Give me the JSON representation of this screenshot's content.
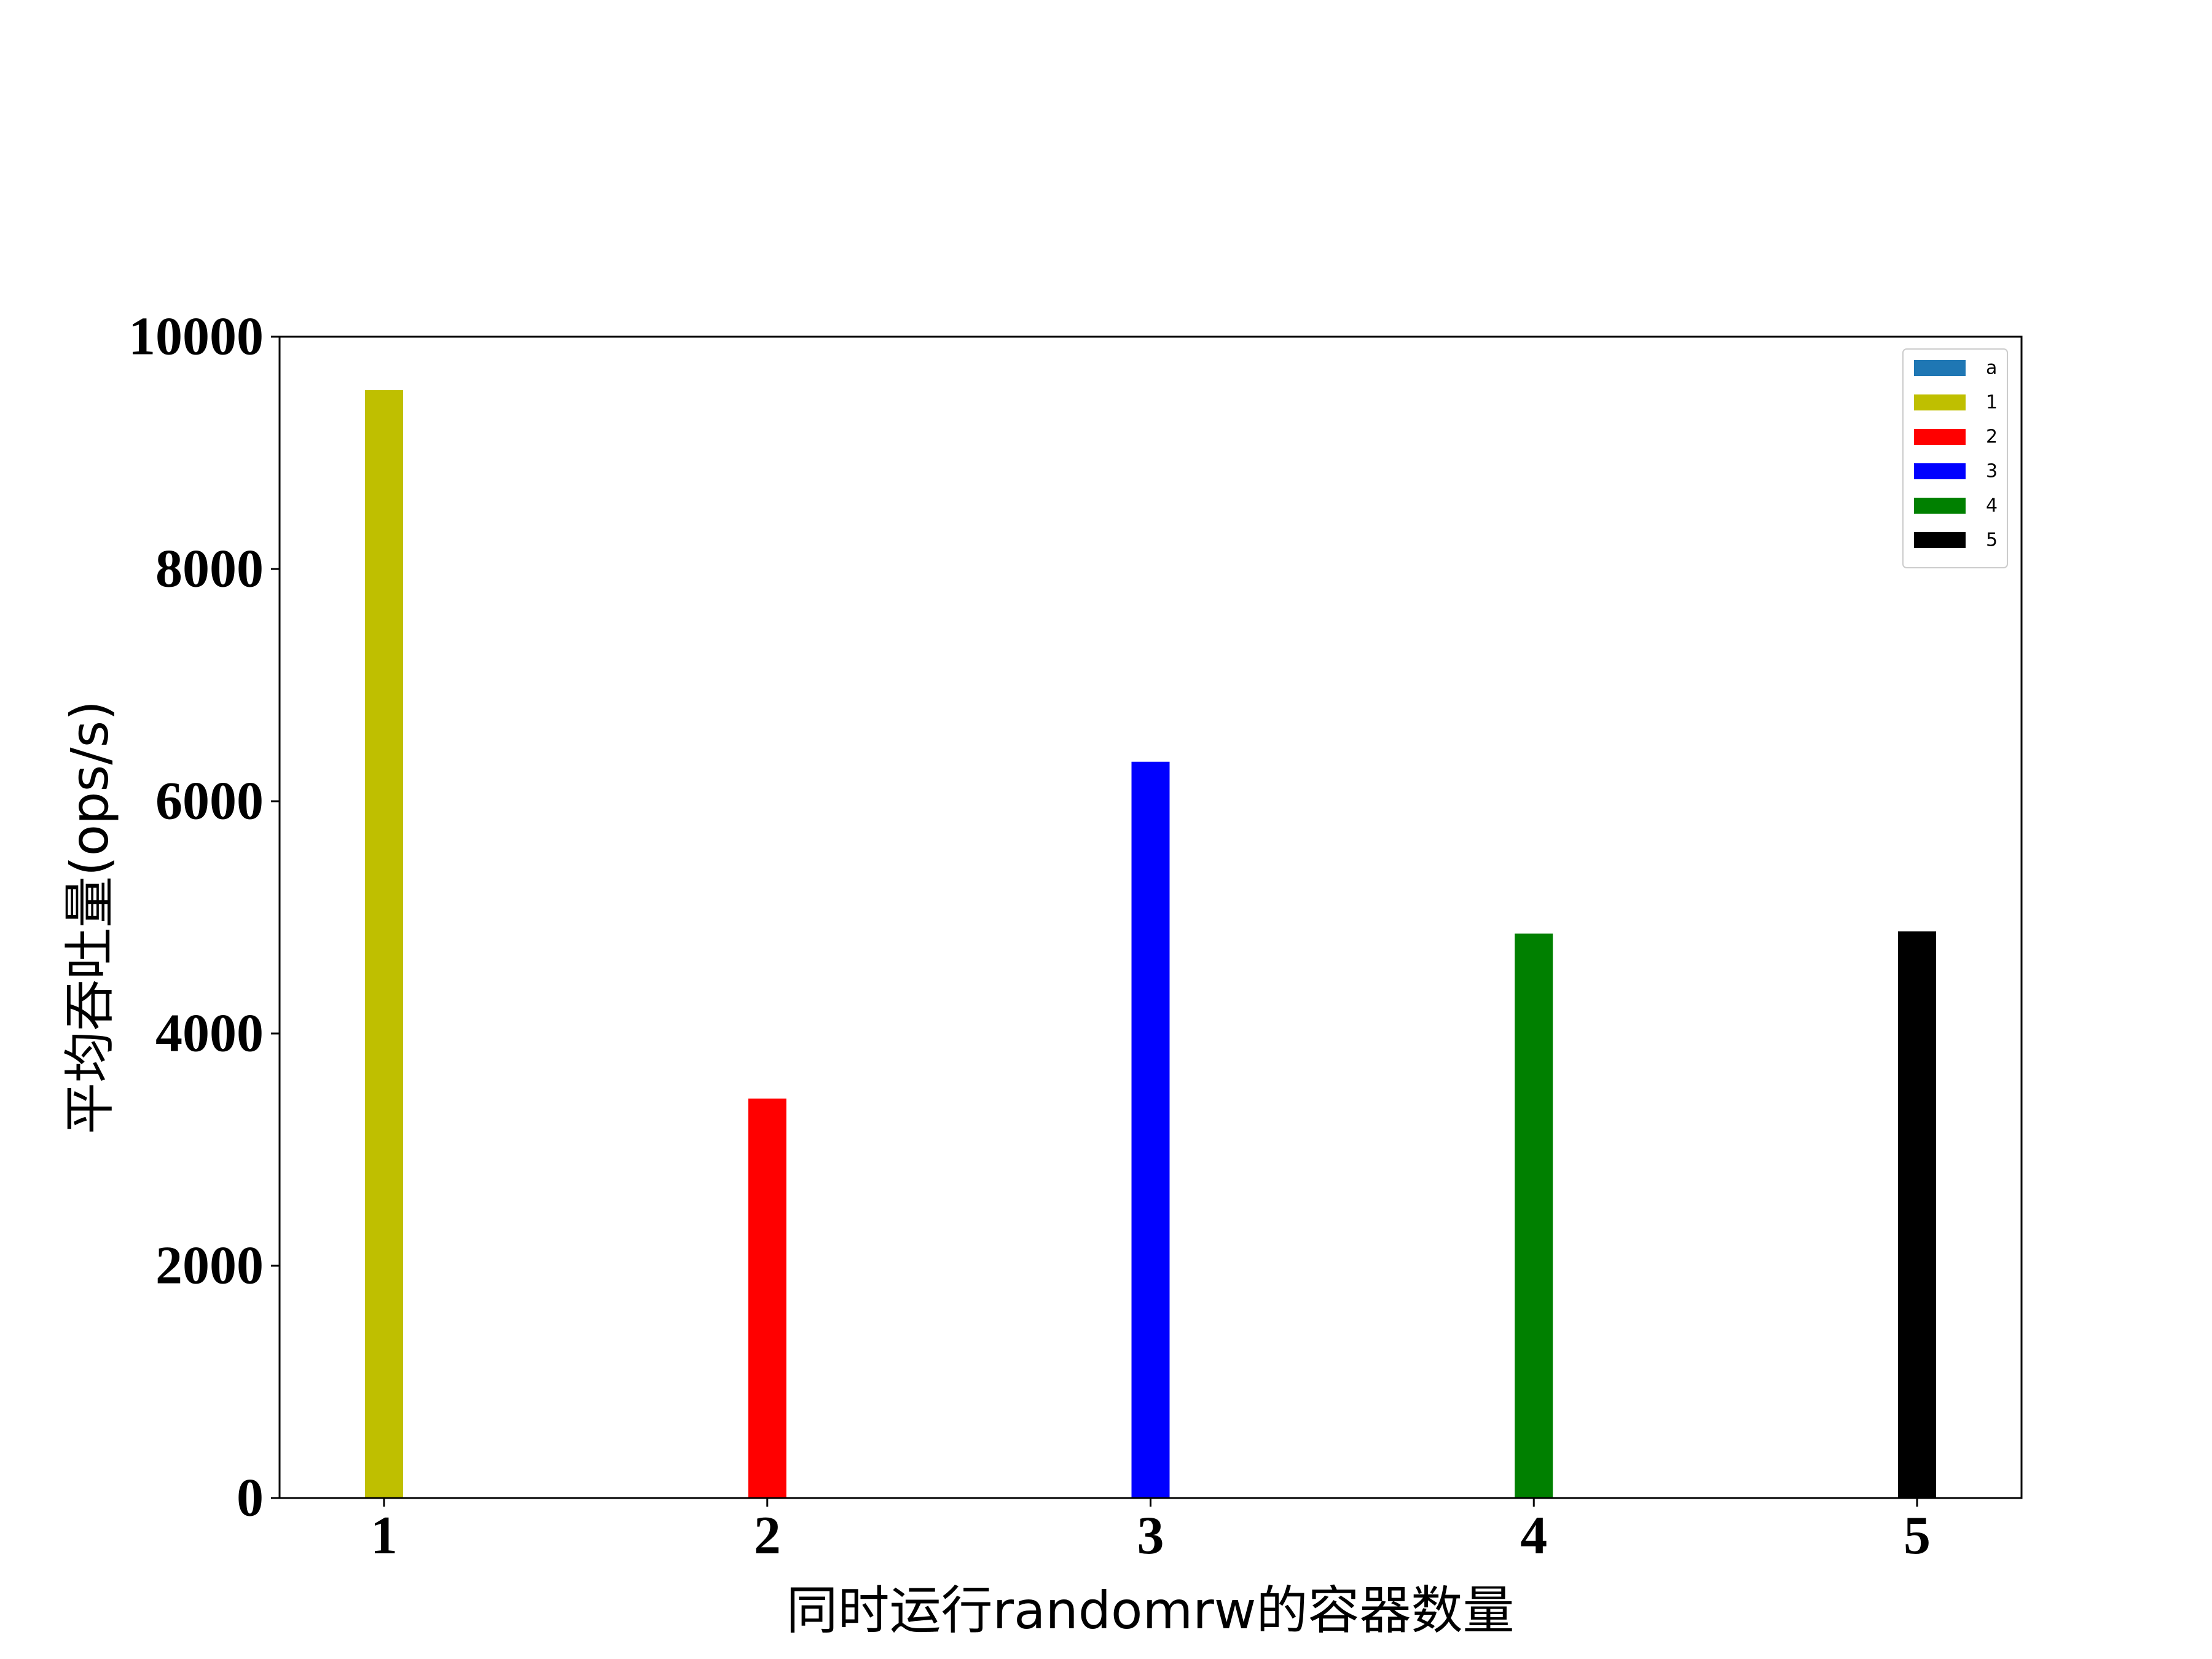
{
  "chart_data": {
    "type": "bar",
    "categories": [
      "1",
      "2",
      "3",
      "4",
      "5"
    ],
    "values": [
      9540,
      3440,
      6340,
      4860,
      4880
    ],
    "bar_colors": [
      "#bfbf00",
      "#ff0000",
      "#0000ff",
      "#008000",
      "#000000"
    ],
    "xlabel": "同时运行randomrw的容器数量",
    "ylabel": "平均吞吐量(ops/s)",
    "ylim": [
      0,
      10000
    ],
    "yticks": [
      "0",
      "2000",
      "4000",
      "6000",
      "8000",
      "10000"
    ],
    "grid": false,
    "legend": {
      "placement": "top-right",
      "entries": [
        {
          "label": "a",
          "color": "#1f77b4"
        },
        {
          "label": "1",
          "color": "#bfbf00"
        },
        {
          "label": "2",
          "color": "#ff0000"
        },
        {
          "label": "3",
          "color": "#0000ff"
        },
        {
          "label": "4",
          "color": "#008000"
        },
        {
          "label": "5",
          "color": "#000000"
        }
      ]
    }
  }
}
